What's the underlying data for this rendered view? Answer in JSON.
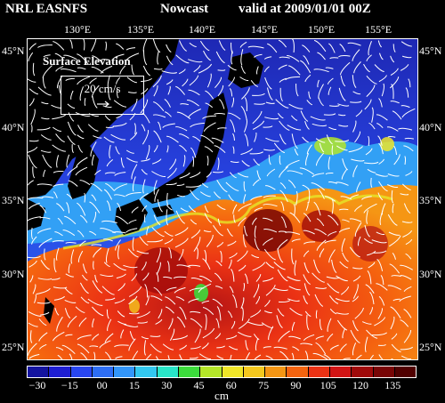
{
  "header": {
    "source": "NRL EASNFS",
    "product": "Nowcast",
    "valid": "valid at 2009/01/01 00Z"
  },
  "map": {
    "lon_labels": [
      "130°E",
      "135°E",
      "140°E",
      "145°E",
      "150°E",
      "155°E"
    ],
    "lat_labels_left": [
      "45°N",
      "40°N",
      "35°N",
      "30°N",
      "25°N"
    ],
    "lat_labels_right": [
      "45°N",
      "40°N",
      "35°N",
      "30°N",
      "25°N"
    ],
    "field": "Surface Elevation",
    "vector_scale_label": "20 cm/s"
  },
  "colorbar": {
    "tick_labels": [
      "−30",
      "−15",
      "00",
      "15",
      "30",
      "45",
      "60",
      "75",
      "90",
      "105",
      "120",
      "135"
    ],
    "unit": "cm",
    "colors": [
      "#1414a0",
      "#1e1ed2",
      "#2846f0",
      "#2d6ef5",
      "#3296fa",
      "#32c8f0",
      "#28e6c8",
      "#3cdc3c",
      "#b4e628",
      "#f0e628",
      "#f5c81e",
      "#f59614",
      "#f5640f",
      "#eb3214",
      "#d21414",
      "#a00a0a",
      "#780505",
      "#500000"
    ]
  }
}
